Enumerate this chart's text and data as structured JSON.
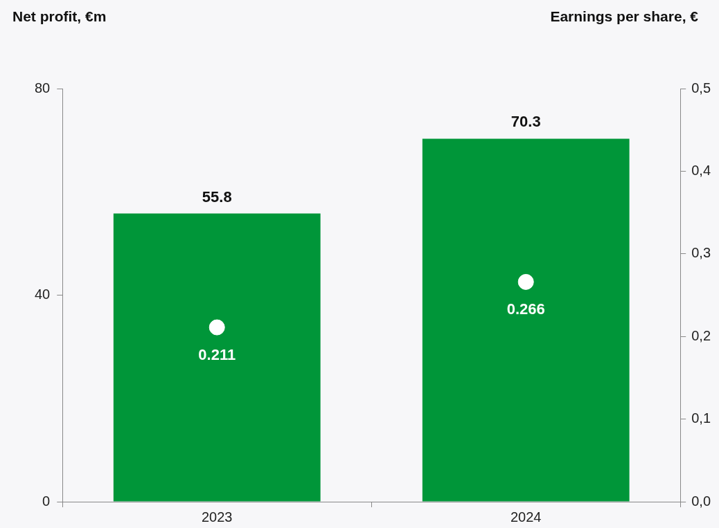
{
  "chart_data": {
    "type": "bar",
    "ylabel": "Net profit, €m",
    "y2label": "Earnings per share, €",
    "categories": [
      "2023",
      "2024"
    ],
    "series": [
      {
        "color": "#009639",
        "values": [
          55.8,
          70.3
        ]
      },
      {
        "type": "scatter",
        "axis": "y2",
        "color": "#ffffff",
        "values": [
          0.211,
          0.266
        ]
      }
    ],
    "ylim": [
      0,
      80
    ],
    "yticks": [
      0,
      40,
      80
    ],
    "y2lim": [
      0,
      0.5
    ],
    "y2ticks": [
      {
        "value": 0,
        "label": "0,0"
      },
      {
        "value": 0.1,
        "label": "0,1"
      },
      {
        "value": 0.2,
        "label": "0,2"
      },
      {
        "value": 0.3,
        "label": "0,3"
      },
      {
        "value": 0.4,
        "label": "0,4"
      },
      {
        "value": 0.5,
        "label": "0,5"
      }
    ],
    "data_labels": true,
    "legend": false,
    "marker": "circle"
  }
}
